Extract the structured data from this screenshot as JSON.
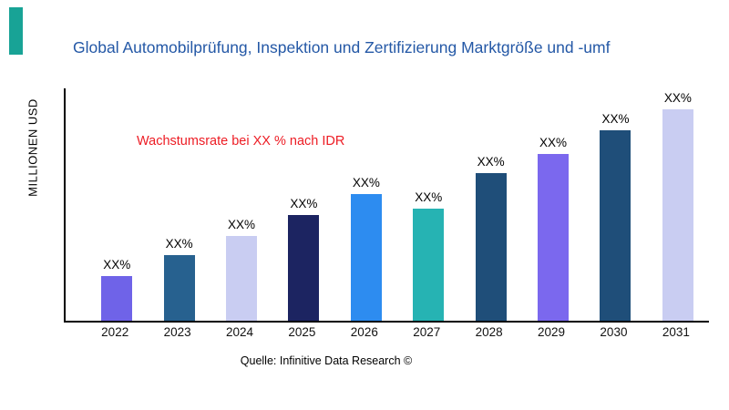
{
  "accent_color": "#18a396",
  "chart_data": {
    "type": "bar",
    "title": "Global Automobilprüfung, Inspektion und Zertifizierung Marktgröße und -umf",
    "title_color": "#2458a6",
    "ylabel": "MILLIONEN USD",
    "annotation": "Wachstumsrate bei XX % nach IDR",
    "annotation_color": "#ed1c24",
    "source": "Quelle: Infinitive Data Research ©",
    "categories": [
      "2022",
      "2023",
      "2024",
      "2025",
      "2026",
      "2027",
      "2028",
      "2029",
      "2030",
      "2031"
    ],
    "values": [
      21,
      31,
      40,
      50,
      60,
      53,
      70,
      79,
      90,
      100
    ],
    "bar_labels": [
      "XX%",
      "XX%",
      "XX%",
      "XX%",
      "XX%",
      "XX%",
      "XX%",
      "XX%",
      "XX%",
      "XX%"
    ],
    "colors": [
      "#6f63e8",
      "#27618f",
      "#c9cdf2",
      "#1c2461",
      "#2d8cf0",
      "#26b3b3",
      "#1f4e79",
      "#7b68ee",
      "#1f4e79",
      "#c9cdf2"
    ],
    "ylim": [
      0,
      110
    ],
    "legend": "none",
    "grid": false,
    "axis_color": "#000000"
  }
}
